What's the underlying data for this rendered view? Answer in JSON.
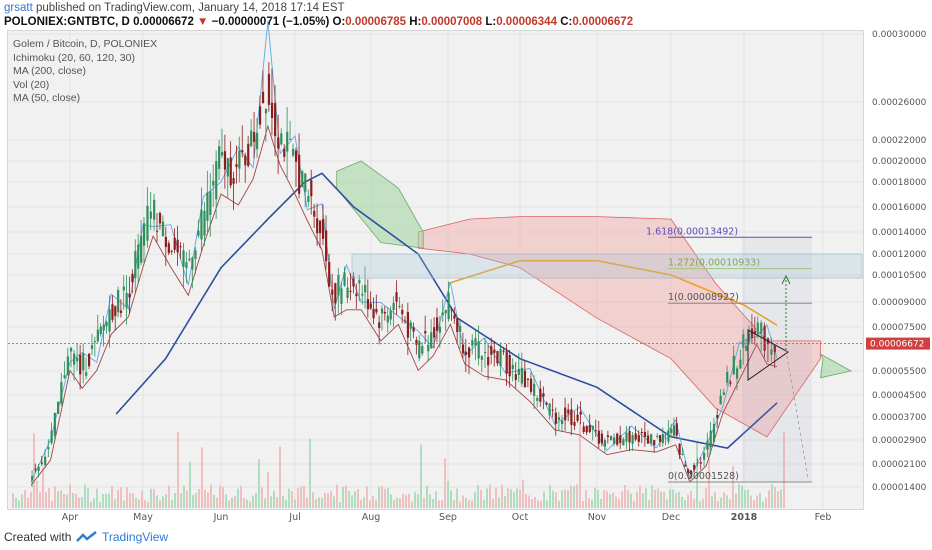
{
  "header": {
    "author": "grsatt",
    "published_text": "published on TradingView.com, January 14, 2018 17:14 EST",
    "symbol": "POLONIEX:GNTBTC, D",
    "last": "0.00006672",
    "change": "−0.00000071 (−1.05%)",
    "ohlc": {
      "o_label": "O:",
      "o": "0.00006785",
      "h_label": "H:",
      "h": "0.00007008",
      "l_label": "L:",
      "l": "0.00006344",
      "c_label": "C:",
      "c": "0.00006672"
    }
  },
  "legend": {
    "title": "Golem / Bitcoin, D, POLONIEX",
    "items": [
      "Ichimoku (20, 60, 120, 30)",
      "MA (200, close)",
      "Vol (20)",
      "MA (50, close)"
    ]
  },
  "footer": {
    "created_with": "Created with",
    "brand": "TradingView"
  },
  "colors": {
    "up": "#2f8f5b",
    "down": "#8b1d1d",
    "conversion": "#5aa9e6",
    "base": "#a04545",
    "ma50": "#2d4f9e",
    "ma200": "#f0a020",
    "cloud_bull": "#9fd39f",
    "cloud_bear": "#f2a8a8",
    "fib": "#5b4fb5"
  },
  "chart_data": {
    "type": "candlestick",
    "title": "Golem / Bitcoin, D, POLONIEX",
    "x_ticks": [
      "Apr",
      "May",
      "Jun",
      "Jul",
      "Aug",
      "Sep",
      "Oct",
      "Nov",
      "Dec",
      "2018",
      "Feb"
    ],
    "y_ticks": [
      "0.00030000",
      "0.00026000",
      "0.00022000",
      "0.00020000",
      "0.00018000",
      "0.00016000",
      "0.00014000",
      "0.00012000",
      "0.00010500",
      "0.00009000",
      "0.00007500",
      "0.00005500",
      "0.00004500",
      "0.00003700",
      "0.00002900",
      "0.00002100",
      "0.00001400"
    ],
    "y_scale": "log",
    "last_price_label": "0.00006672",
    "price_path": [
      [
        "2017-03-16",
        1.7e-05
      ],
      [
        "2017-03-24",
        2.6e-05
      ],
      [
        "2017-04-01",
        6.5e-05
      ],
      [
        "2017-04-06",
        5.6e-05
      ],
      [
        "2017-04-12",
        6.5e-05
      ],
      [
        "2017-04-18",
        8.4e-05
      ],
      [
        "2017-04-25",
        9.5e-05
      ],
      [
        "2017-05-01",
        0.00013
      ],
      [
        "2017-05-05",
        0.00016
      ],
      [
        "2017-05-12",
        0.00013
      ],
      [
        "2017-05-19",
        0.00011
      ],
      [
        "2017-05-25",
        0.00015
      ],
      [
        "2017-06-01",
        0.0002
      ],
      [
        "2017-06-08",
        0.00019
      ],
      [
        "2017-06-14",
        0.000215
      ],
      [
        "2017-06-20",
        0.000275
      ],
      [
        "2017-06-25",
        0.00023
      ],
      [
        "2017-07-01",
        0.0002
      ],
      [
        "2017-07-06",
        0.000175
      ],
      [
        "2017-07-12",
        0.000145
      ],
      [
        "2017-07-17",
        9.5e-05
      ],
      [
        "2017-07-22",
        0.0001
      ],
      [
        "2017-07-28",
        0.0001
      ],
      [
        "2017-08-05",
        8e-05
      ],
      [
        "2017-08-12",
        9e-05
      ],
      [
        "2017-08-20",
        6.5e-05
      ],
      [
        "2017-08-26",
        7.2e-05
      ],
      [
        "2017-09-02",
        9e-05
      ],
      [
        "2017-09-08",
        6.8e-05
      ],
      [
        "2017-09-16",
        6.2e-05
      ],
      [
        "2017-09-25",
        6e-05
      ],
      [
        "2017-10-05",
        5e-05
      ],
      [
        "2017-10-15",
        3.8e-05
      ],
      [
        "2017-10-25",
        3.6e-05
      ],
      [
        "2017-11-05",
        2.8e-05
      ],
      [
        "2017-11-15",
        3e-05
      ],
      [
        "2017-11-25",
        2.9e-05
      ],
      [
        "2017-12-03",
        3.2e-05
      ],
      [
        "2017-12-09",
        1.8e-05
      ],
      [
        "2017-12-16",
        2.4e-05
      ],
      [
        "2017-12-23",
        4.5e-05
      ],
      [
        "2017-12-30",
        6e-05
      ],
      [
        "2018-01-06",
        7.8e-05
      ],
      [
        "2018-01-10",
        6.8e-05
      ],
      [
        "2018-01-14",
        6.67e-05
      ]
    ],
    "ma50": [
      [
        "2017-04-20",
        3.8e-05
      ],
      [
        "2017-05-10",
        6e-05
      ],
      [
        "2017-06-01",
        0.00011
      ],
      [
        "2017-06-20",
        0.00015
      ],
      [
        "2017-07-05",
        0.00018
      ],
      [
        "2017-07-12",
        0.000188
      ],
      [
        "2017-07-25",
        0.00016
      ],
      [
        "2017-08-20",
        0.00012
      ],
      [
        "2017-09-05",
        8e-05
      ],
      [
        "2017-10-01",
        6e-05
      ],
      [
        "2017-11-01",
        4.8e-05
      ],
      [
        "2017-12-01",
        3e-05
      ],
      [
        "2017-12-25",
        2.6e-05
      ],
      [
        "2018-01-14",
        4.2e-05
      ]
    ],
    "ma200": [
      [
        "2017-09-01",
        0.0001
      ],
      [
        "2017-10-01",
        0.000115
      ],
      [
        "2017-11-01",
        0.000115
      ],
      [
        "2017-12-01",
        0.000105
      ],
      [
        "2018-01-01",
        8.8e-05
      ],
      [
        "2018-01-14",
        7.6e-05
      ]
    ],
    "fibonacci": [
      {
        "label": "1.618(0.00013492)",
        "value": 0.00013492
      },
      {
        "label": "1.272(0.00010933)",
        "value": 0.00010933
      },
      {
        "label": "1(0.00008922)",
        "value": 8.922e-05
      },
      {
        "label": "0(0.00001528)",
        "value": 1.528e-05
      }
    ],
    "grid": true,
    "legend_position": "top-left"
  }
}
